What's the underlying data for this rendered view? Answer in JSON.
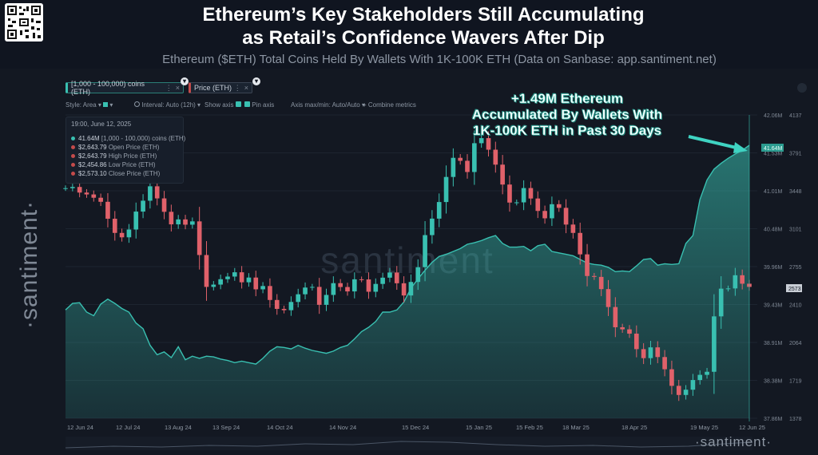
{
  "header": {
    "title_line1": "Ethereum’s Key Stakeholders Still Accumulating",
    "title_line2": "as Retail’s Confidence Wavers After Dip",
    "subtitle": "Ethereum ($ETH) Total Coins Held By Wallets With 1K-100K ETH (Data on Sanbase: app.santiment.net)"
  },
  "brand": {
    "name": "·santiment·",
    "watermark": "santiment"
  },
  "controls": {
    "metric1_label": "[1,000 - 100,000) coins (ETH)",
    "metric2_label": "Price (ETH)",
    "style": "Style: Area",
    "interval": "Interval: Auto (12h)",
    "show_axis": "Show axis",
    "pin_axis": "Pin axis",
    "axis_minmax": "Axis max/min: Auto/Auto",
    "combine": "Combine metrics"
  },
  "tooltip": {
    "date": "19:00, June 12, 2025",
    "rows": [
      {
        "value": "41.64M",
        "label": "[1,000 - 100,000) coins (ETH)",
        "color": "#39c0b1"
      },
      {
        "value": "$2,643.79",
        "label": "Open Price (ETH)",
        "color": "#c44b4b"
      },
      {
        "value": "$2,643.79",
        "label": "High Price (ETH)",
        "color": "#c44b4b"
      },
      {
        "value": "$2,454.86",
        "label": "Low Price (ETH)",
        "color": "#c44b4b"
      },
      {
        "value": "$2,573.10",
        "label": "Close Price (ETH)",
        "color": "#c44b4b"
      }
    ]
  },
  "annotation": {
    "line1": "+1.49M Ethereum",
    "line2": "Accumulated By Wallets With",
    "line3": "1K-100K ETH in Past 30 Days"
  },
  "colors": {
    "holdings": "#39c0b1",
    "price_up": "#39c0b1",
    "price_down": "#e0616a",
    "background": "#131822"
  },
  "chart_data": {
    "type": "line",
    "x_ticks": [
      "12 Jun 24",
      "12 Jul 24",
      "13 Aug 24",
      "13 Sep 24",
      "14 Oct 24",
      "14 Nov 24",
      "15 Dec 24",
      "15 Jan 25",
      "15 Feb 25",
      "18 Mar 25",
      "18 Apr 25",
      "19 May 25",
      "12 Jun 25"
    ],
    "left_axis_ticks": [
      "42.06M",
      "41.53M",
      "41.01M",
      "40.48M",
      "39.96M",
      "39.43M",
      "38.91M",
      "38.38M",
      "37.86M"
    ],
    "right_axis_ticks": [
      "4137",
      "3791",
      "3448",
      "3101",
      "2755",
      "2410",
      "2064",
      "1719",
      "1378"
    ],
    "left_axis_range": [
      37.86,
      42.06
    ],
    "right_axis_range": [
      1378,
      4137
    ],
    "current_labels": {
      "holdings": "41.64M",
      "price": "2573"
    },
    "series": [
      {
        "name": "[1,000 - 100,000) coins (ETH)",
        "style": "area",
        "values": [
          39.36,
          39.45,
          39.46,
          39.33,
          39.28,
          39.44,
          39.51,
          39.45,
          39.38,
          39.33,
          39.18,
          39.1,
          38.87,
          38.74,
          38.78,
          38.7,
          38.85,
          38.67,
          38.72,
          38.69,
          38.72,
          38.71,
          38.68,
          38.66,
          38.63,
          38.65,
          38.63,
          38.61,
          38.69,
          38.79,
          38.85,
          38.84,
          38.82,
          38.87,
          38.83,
          38.8,
          38.78,
          38.76,
          38.79,
          38.84,
          38.87,
          38.96,
          39.06,
          39.12,
          39.2,
          39.33,
          39.33,
          39.36,
          39.47,
          39.66,
          39.79,
          39.91,
          40.02,
          40.1,
          40.13,
          40.17,
          40.21,
          40.27,
          40.29,
          40.32,
          40.36,
          40.39,
          40.28,
          40.23,
          40.23,
          40.24,
          40.18,
          40.25,
          40.27,
          40.17,
          40.15,
          40.13,
          40.11,
          40.06,
          40.01,
          39.99,
          39.98,
          39.95,
          39.89,
          39.9,
          39.89,
          39.97,
          40.06,
          40.07,
          39.98,
          40.0,
          39.99,
          40.0,
          40.28,
          40.39,
          40.89,
          41.16,
          41.31,
          41.39,
          41.46,
          41.52,
          41.57,
          41.64
        ]
      },
      {
        "name": "Price (ETH)",
        "style": "candlestick",
        "values": [
          3471,
          3482,
          3431,
          3414,
          3384,
          3347,
          3193,
          3064,
          3024,
          3095,
          3258,
          3357,
          3488,
          3378,
          3256,
          3142,
          3187,
          3139,
          3169,
          2863,
          2573,
          2594,
          2643,
          2667,
          2706,
          2615,
          2658,
          2551,
          2581,
          2454,
          2373,
          2361,
          2436,
          2506,
          2567,
          2573,
          2410,
          2500,
          2607,
          2572,
          2532,
          2642,
          2641,
          2529,
          2600,
          2657,
          2704,
          2606,
          2495,
          2618,
          2752,
          3044,
          3194,
          3345,
          3573,
          3747,
          3720,
          3618,
          3880,
          3926,
          3821,
          3685,
          3504,
          3340,
          3342,
          3472,
          3377,
          3264,
          3197,
          3325,
          3292,
          3140,
          3064,
          2869,
          2672,
          2664,
          2553,
          2390,
          2206,
          2187,
          2148,
          2007,
          1925,
          2023,
          1935,
          1824,
          1673,
          1590,
          1638,
          1726,
          1773,
          1801,
          2305,
          2557,
          2559,
          2679,
          2602,
          2573
        ]
      }
    ]
  }
}
